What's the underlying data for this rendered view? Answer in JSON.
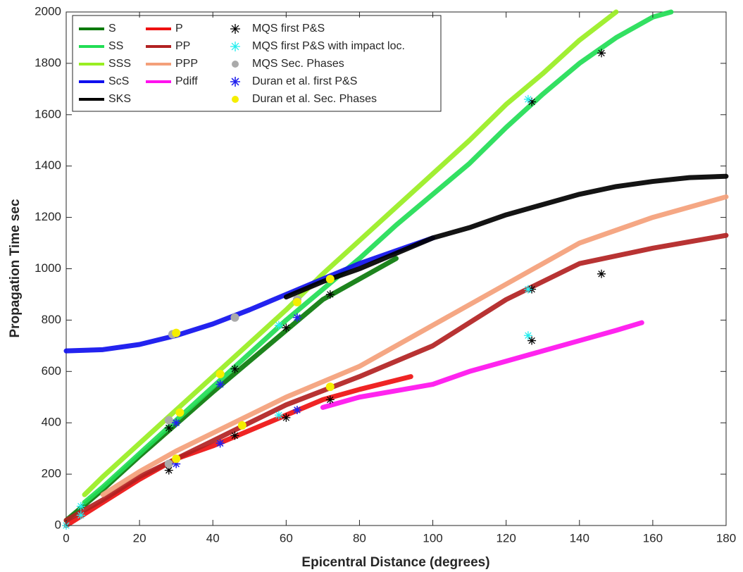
{
  "chart_data": {
    "type": "line",
    "xlabel": "Epicentral Distance (degrees)",
    "ylabel": "Propagation Time sec",
    "xlim": [
      0,
      180
    ],
    "ylim": [
      0,
      2000
    ],
    "xticks": [
      0,
      20,
      40,
      60,
      80,
      100,
      120,
      140,
      160,
      180
    ],
    "yticks": [
      0,
      200,
      400,
      600,
      800,
      1000,
      1200,
      1400,
      1600,
      1800,
      2000
    ],
    "legend": "upper left",
    "series": [
      {
        "name": "S",
        "color": "#0a7a0a",
        "marker": "line",
        "x": [
          0,
          10,
          20,
          30,
          40,
          50,
          60,
          70,
          80,
          90
        ],
        "values": [
          20,
          140,
          270,
          395,
          520,
          640,
          760,
          880,
          960,
          1040
        ]
      },
      {
        "name": "SS",
        "color": "#22dd55",
        "marker": "line",
        "x": [
          5,
          10,
          20,
          30,
          40,
          50,
          60,
          70,
          80,
          90,
          100,
          110,
          120,
          130,
          140,
          150,
          160,
          165
        ],
        "values": [
          90,
          150,
          280,
          410,
          540,
          670,
          800,
          920,
          1040,
          1170,
          1290,
          1410,
          1550,
          1680,
          1800,
          1900,
          1980,
          2000
        ]
      },
      {
        "name": "SSS",
        "color": "#99ee22",
        "marker": "line",
        "x": [
          5,
          10,
          20,
          30,
          40,
          50,
          60,
          70,
          80,
          90,
          100,
          110,
          120,
          130,
          140,
          150
        ],
        "values": [
          120,
          190,
          320,
          450,
          580,
          710,
          840,
          980,
          1110,
          1240,
          1370,
          1500,
          1640,
          1760,
          1890,
          2000
        ]
      },
      {
        "name": "ScS",
        "color": "#1010ee",
        "marker": "line",
        "x": [
          0,
          10,
          20,
          30,
          40,
          50,
          60,
          70,
          80,
          90,
          100
        ],
        "values": [
          680,
          685,
          705,
          740,
          785,
          840,
          900,
          960,
          1020,
          1070,
          1120
        ]
      },
      {
        "name": "SKS",
        "color": "#000000",
        "marker": "line",
        "x": [
          60,
          70,
          80,
          90,
          100,
          110,
          120,
          130,
          140,
          150,
          160,
          170,
          180
        ],
        "values": [
          890,
          950,
          1000,
          1060,
          1120,
          1160,
          1210,
          1250,
          1290,
          1320,
          1340,
          1355,
          1360
        ]
      },
      {
        "name": "P",
        "color": "#ee1111",
        "marker": "line",
        "x": [
          0,
          10,
          20,
          30,
          40,
          50,
          60,
          70,
          80,
          94
        ],
        "values": [
          0,
          90,
          180,
          260,
          310,
          370,
          430,
          490,
          530,
          580
        ]
      },
      {
        "name": "PP",
        "color": "#b22222",
        "marker": "line",
        "x": [
          0,
          10,
          20,
          30,
          40,
          50,
          60,
          80,
          100,
          120,
          140,
          160,
          180
        ],
        "values": [
          20,
          100,
          190,
          260,
          330,
          400,
          470,
          580,
          700,
          880,
          1020,
          1080,
          1130
        ]
      },
      {
        "name": "PPP",
        "color": "#f4a07a",
        "marker": "line",
        "x": [
          10,
          20,
          30,
          40,
          50,
          60,
          80,
          100,
          120,
          140,
          160,
          180
        ],
        "values": [
          120,
          210,
          290,
          360,
          430,
          500,
          620,
          780,
          940,
          1100,
          1200,
          1280
        ]
      },
      {
        "name": "Pdiff",
        "color": "#ff11ee",
        "marker": "line",
        "x": [
          70,
          80,
          90,
          100,
          110,
          120,
          130,
          140,
          150,
          157
        ],
        "values": [
          460,
          500,
          525,
          550,
          600,
          640,
          680,
          720,
          760,
          790
        ]
      },
      {
        "name": "MQS first P&S",
        "color": "#000000",
        "marker": "asterisk",
        "x": [
          28,
          28,
          46,
          46,
          60,
          60,
          72,
          72,
          127,
          127,
          127,
          146,
          146
        ],
        "values": [
          215,
          380,
          350,
          610,
          420,
          770,
          490,
          900,
          720,
          920,
          1650,
          980,
          1840
        ]
      },
      {
        "name": "MQS first P&S with impact loc.",
        "color": "#22eeee",
        "marker": "asterisk",
        "x": [
          0,
          4,
          4,
          58,
          58,
          126,
          126,
          126
        ],
        "values": [
          0,
          40,
          75,
          430,
          780,
          740,
          920,
          1660
        ]
      },
      {
        "name": "MQS Sec. Phases",
        "color": "#aaaaaa",
        "marker": "circle",
        "x": [
          28,
          28,
          29,
          46,
          63
        ],
        "values": [
          240,
          410,
          745,
          810,
          880
        ]
      },
      {
        "name": "Duran et al. first P&S",
        "color": "#2222ee",
        "marker": "star",
        "x": [
          30,
          30,
          42,
          42,
          63,
          63
        ],
        "values": [
          240,
          400,
          320,
          550,
          450,
          810
        ]
      },
      {
        "name": "Duran et al. Sec. Phases",
        "color": "#f5ee00",
        "marker": "circle",
        "x": [
          30,
          31,
          30,
          42,
          48,
          63,
          72,
          72
        ],
        "values": [
          260,
          440,
          750,
          590,
          390,
          870,
          540,
          960
        ]
      }
    ]
  }
}
